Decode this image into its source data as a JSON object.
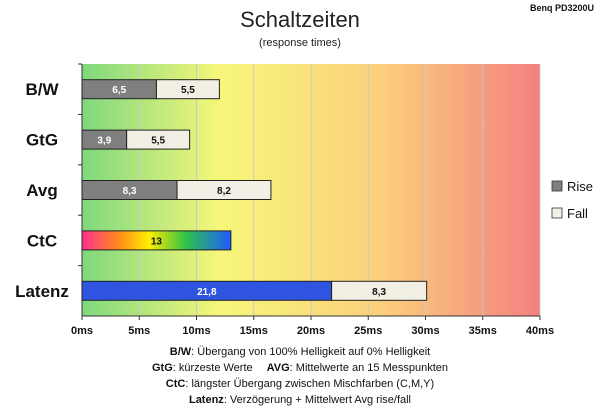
{
  "chart_data": {
    "type": "bar",
    "orientation": "horizontal",
    "stacked": true,
    "title": "Schaltzeiten",
    "subtitle": "(response times)",
    "corner_label": "Benq PD3200U",
    "categories": [
      "B/W",
      "GtG",
      "Avg",
      "CtC",
      "Latenz"
    ],
    "series": [
      {
        "name": "Rise",
        "values": [
          6.5,
          3.9,
          8.3,
          13,
          21.8
        ],
        "labels": [
          "6,5",
          "3,9",
          "8,3",
          "13",
          "21,8"
        ],
        "color": "#7f7f7f"
      },
      {
        "name": "Fall",
        "values": [
          5.5,
          5.5,
          8.2,
          null,
          8.3
        ],
        "labels": [
          "5,5",
          "5,5",
          "8,2",
          "",
          "8,3"
        ],
        "color": "#f2efe4"
      }
    ],
    "special_colors": {
      "CtC": "rainbow",
      "Latenz": "#2f55e0"
    },
    "x_ticks": [
      "0ms",
      "5ms",
      "10ms",
      "15ms",
      "20ms",
      "25ms",
      "30ms",
      "35ms",
      "40ms"
    ],
    "xlim": [
      0,
      40
    ],
    "grid": true,
    "legend_position": "right",
    "background_gradient": [
      "#7ed87e",
      "#f6f77a",
      "#fbd07c",
      "#f48080"
    ]
  },
  "notes": {
    "bw_key": "B/W",
    "bw_text": ": Übergang von 100% Helligkeit auf 0% Helligkeit",
    "gtg_key": "GtG",
    "gtg_text": ": kürzeste Werte",
    "avg_key": "AVG",
    "avg_text": ": Mittelwerte an 15 Messpunkten",
    "ctc_key": "CtC",
    "ctc_text": ": längster Übergang zwischen Mischfarben (C,M,Y)",
    "latenz_key": "Latenz",
    "latenz_text": ": Verzögerung + Mittelwert Avg rise/fall"
  }
}
